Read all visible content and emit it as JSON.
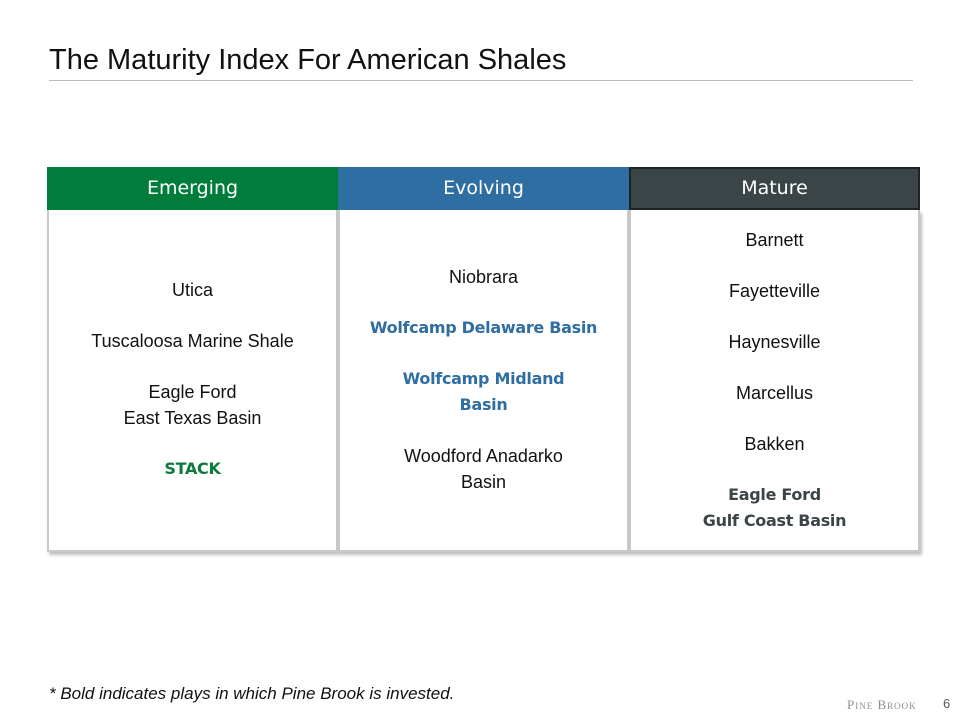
{
  "slide": {
    "title": "The Maturity Index For American Shales",
    "footnote": "* Bold indicates plays in which Pine Brook is invested.",
    "brand": "Pine Brook",
    "page_number": "6"
  },
  "columns": [
    {
      "header": "Emerging",
      "header_color": "#007d3a",
      "items": [
        "Utica",
        "Tuscaloosa Marine Shale",
        "Eagle Ford",
        "East Texas Basin",
        "STACK"
      ]
    },
    {
      "header": "Evolving",
      "header_color": "#2e6ea2",
      "items": [
        "Niobrara",
        "Wolfcamp Delaware Basin",
        "Wolfcamp Midland",
        "Basin",
        "Woodford Anadarko",
        "Basin"
      ]
    },
    {
      "header": "Mature",
      "header_color": "#3b4446",
      "items": [
        "Barnett",
        "Fayetteville",
        "Haynesville",
        "Marcellus",
        "Bakken",
        "Eagle Ford",
        "Gulf Coast Basin"
      ]
    }
  ]
}
